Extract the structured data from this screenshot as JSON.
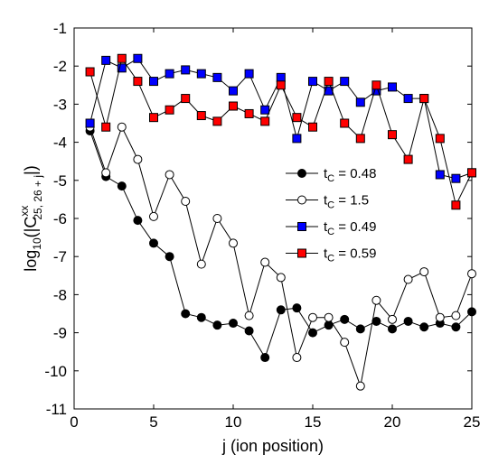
{
  "chart_data": {
    "type": "line",
    "xlabel": "j (ion position)",
    "ylabel": {
      "base": "log",
      "sub": "10",
      "open": "(|C",
      "sup": "xx",
      "sub2": "25, 26 + j",
      "close": "|)"
    },
    "xlim": [
      0,
      25
    ],
    "ylim": [
      -11,
      -1
    ],
    "xticks": [
      0,
      5,
      10,
      15,
      20,
      25
    ],
    "yticks": [
      -11,
      -10,
      -9,
      -8,
      -7,
      -6,
      -5,
      -4,
      -3,
      -2,
      -1
    ],
    "grid": false,
    "legend_position": "center-right",
    "series": [
      {
        "name": {
          "main": "t",
          "sub": "C",
          "rest": " = 0.48"
        },
        "marker": "circle",
        "fill": "#000000",
        "line": "#000000",
        "x": [
          1,
          2,
          3,
          4,
          5,
          6,
          7,
          8,
          9,
          10,
          11,
          12,
          13,
          14,
          15,
          16,
          17,
          18,
          19,
          20,
          21,
          22,
          23,
          24,
          25
        ],
        "y": [
          -3.7,
          -4.9,
          -5.15,
          -6.05,
          -6.65,
          -7.0,
          -8.5,
          -8.6,
          -8.8,
          -8.75,
          -8.95,
          -9.65,
          -8.4,
          -8.35,
          -9.0,
          -8.8,
          -8.65,
          -8.9,
          -8.7,
          -8.9,
          -8.7,
          -8.85,
          -8.75,
          -8.85,
          -8.45
        ]
      },
      {
        "name": {
          "main": "t",
          "sub": "C",
          "rest": " = 1.5"
        },
        "marker": "circle",
        "fill": "#ffffff",
        "line": "#000000",
        "x": [
          1,
          2,
          3,
          4,
          5,
          6,
          7,
          8,
          9,
          10,
          11,
          12,
          13,
          14,
          15,
          16,
          17,
          18,
          19,
          20,
          21,
          22,
          23,
          24,
          25
        ],
        "y": [
          -3.6,
          -4.8,
          -3.6,
          -4.45,
          -5.95,
          -4.85,
          -5.55,
          -7.2,
          -6.0,
          -6.65,
          -8.55,
          -7.15,
          -7.55,
          -9.65,
          -8.6,
          -8.6,
          -9.25,
          -10.4,
          -8.15,
          -8.65,
          -7.6,
          -7.4,
          -8.6,
          -8.55,
          -7.45
        ]
      },
      {
        "name": {
          "main": "t",
          "sub": "C",
          "rest": " = 0.49"
        },
        "marker": "square",
        "fill": "#0000ff",
        "line": "#000000",
        "x": [
          1,
          2,
          3,
          4,
          5,
          6,
          7,
          8,
          9,
          10,
          11,
          12,
          13,
          14,
          15,
          16,
          17,
          18,
          19,
          20,
          21,
          22,
          23,
          24,
          25
        ],
        "y": [
          -3.5,
          -1.85,
          -2.05,
          -1.8,
          -2.4,
          -2.2,
          -2.1,
          -2.2,
          -2.3,
          -2.65,
          -2.2,
          -3.15,
          -2.3,
          -3.9,
          -2.4,
          -2.65,
          -2.4,
          -2.95,
          -2.65,
          -2.55,
          -2.85,
          -2.85,
          -4.85,
          -4.95,
          -4.8
        ]
      },
      {
        "name": {
          "main": "t",
          "sub": "C",
          "rest": " = 0.59"
        },
        "marker": "square",
        "fill": "#ff0000",
        "line": "#000000",
        "x": [
          1,
          2,
          3,
          4,
          5,
          6,
          7,
          8,
          9,
          10,
          11,
          12,
          13,
          14,
          15,
          16,
          17,
          18,
          19,
          20,
          21,
          22,
          23,
          24,
          25
        ],
        "y": [
          -2.15,
          -3.6,
          -1.8,
          -2.4,
          -3.35,
          -3.15,
          -2.85,
          -3.3,
          -3.45,
          -3.05,
          -3.25,
          -3.45,
          -2.5,
          -3.35,
          -3.6,
          -2.4,
          -3.5,
          -3.9,
          -2.5,
          -3.8,
          -4.45,
          -2.85,
          -3.9,
          -5.65,
          -4.8
        ]
      }
    ]
  }
}
